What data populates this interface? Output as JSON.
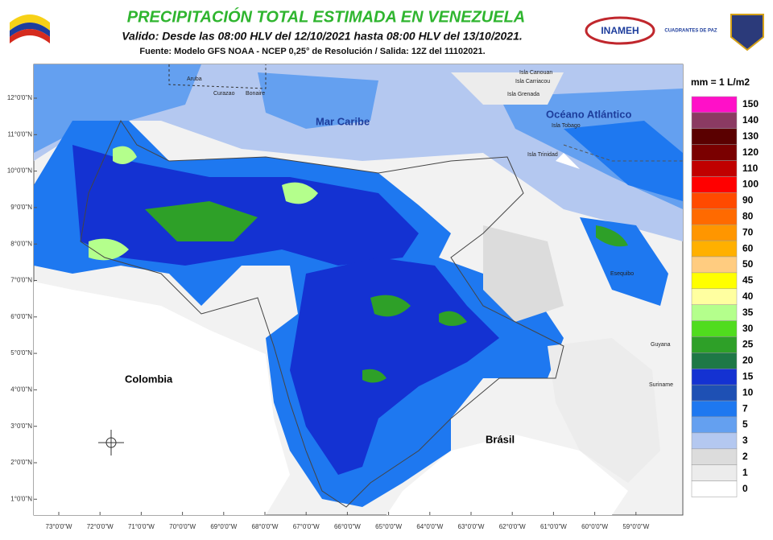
{
  "header": {
    "title": "PRECIPITACIÓN TOTAL ESTIMADA EN VENEZUELA",
    "subtitle": "Valido: Desde las 08:00 HLV del 12/10/2021 hasta 08:00 HLV del 13/10/2021.",
    "source": "Fuente: Modelo GFS NOAA - NCEP 0,25° de Resolución / Salida: 12Z del 11102021.",
    "logo_inameh": "INAMEH",
    "logo_cuadrantes": "CUADRANTES DE PAZ"
  },
  "map": {
    "lat_labels": [
      "12°0'0\"N",
      "11°0'0\"N",
      "10°0'0\"N",
      "9°0'0\"N",
      "8°0'0\"N",
      "7°0'0\"N",
      "6°0'0\"N",
      "5°0'0\"N",
      "4°0'0\"N",
      "3°0'0\"N",
      "2°0'0\"N",
      "1°0'0\"N"
    ],
    "lon_labels": [
      "73°0'0\"W",
      "72°0'0\"W",
      "71°0'0\"W",
      "70°0'0\"W",
      "69°0'0\"W",
      "68°0'0\"W",
      "67°0'0\"W",
      "66°0'0\"W",
      "65°0'0\"W",
      "64°0'0\"W",
      "63°0'0\"W",
      "62°0'0\"W",
      "61°0'0\"W",
      "60°0'0\"W",
      "59°0'0\"W"
    ],
    "places": [
      "Aruba",
      "Curazao",
      "Bonaire",
      "Isla Canouan",
      "Isla Carriacou",
      "Isla Grenada",
      "Mar Caribe",
      "Océano Atlántico",
      "Isla Tobago",
      "Isla Trinidad",
      "Colombia",
      "Brásil",
      "Guyana",
      "Suriname",
      "Esequibo"
    ]
  },
  "legend": {
    "title": "mm = 1 L/m2",
    "items": [
      {
        "label": 150,
        "color": "#ff10c8"
      },
      {
        "label": 140,
        "color": "#8b3a62"
      },
      {
        "label": 130,
        "color": "#5a0000"
      },
      {
        "label": 120,
        "color": "#7a0000"
      },
      {
        "label": 110,
        "color": "#c00000"
      },
      {
        "label": 100,
        "color": "#ff0000"
      },
      {
        "label": 90,
        "color": "#ff4a00"
      },
      {
        "label": 80,
        "color": "#ff6a00"
      },
      {
        "label": 70,
        "color": "#ff9600"
      },
      {
        "label": 60,
        "color": "#ffb000"
      },
      {
        "label": 50,
        "color": "#ffcc80"
      },
      {
        "label": 45,
        "color": "#ffff00"
      },
      {
        "label": 40,
        "color": "#ffffa0"
      },
      {
        "label": 35,
        "color": "#b4ff8c"
      },
      {
        "label": 30,
        "color": "#50dc1e"
      },
      {
        "label": 25,
        "color": "#2ea028"
      },
      {
        "label": 20,
        "color": "#1e7846"
      },
      {
        "label": 15,
        "color": "#1432d2"
      },
      {
        "label": 10,
        "color": "#1e50b4"
      },
      {
        "label": 7,
        "color": "#1e78f0"
      },
      {
        "label": 5,
        "color": "#64a0f0"
      },
      {
        "label": 3,
        "color": "#b4c8f0"
      },
      {
        "label": 2,
        "color": "#dcdcdc"
      },
      {
        "label": 1,
        "color": "#ececec"
      },
      {
        "label": 0,
        "color": "#ffffff"
      }
    ]
  }
}
